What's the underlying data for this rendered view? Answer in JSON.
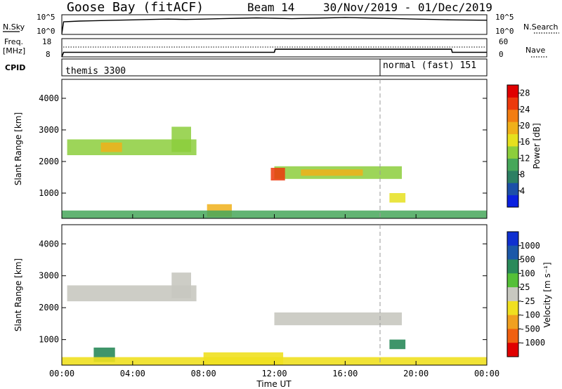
{
  "header": {
    "station": "Goose Bay (fitACF)",
    "beam": "Beam 14",
    "date_range": "30/Nov/2019 - 01/Dec/2019"
  },
  "noise_panel": {
    "left_label": "N.Sky",
    "right_label": "N.Search",
    "left_ticks": [
      "10^5",
      "10^0"
    ],
    "right_ticks": [
      "10^5",
      "10^0"
    ]
  },
  "freq_panel": {
    "left_label_line1": "Freq.",
    "left_label_line2": "[MHz]",
    "right_label": "Nave",
    "left_ticks": [
      "18",
      "8"
    ],
    "right_ticks": [
      "60",
      "0"
    ]
  },
  "cpid_panel": {
    "label": "CPID",
    "segments": [
      {
        "label": "themis 3300",
        "start_hour": 0
      },
      {
        "label": "normal (fast) 151",
        "start_hour": 18
      }
    ]
  },
  "colorbars": {
    "power": {
      "label": "Power [dB]",
      "ticks": [
        "4",
        "8",
        "12",
        "16",
        "20",
        "24",
        "28"
      ],
      "colors": [
        "#0a20e0",
        "#1c4fa8",
        "#2c7f63",
        "#46a75a",
        "#8cce3c",
        "#e6e01e",
        "#f0b01a",
        "#f27d12",
        "#ec3a0c",
        "#e00000"
      ]
    },
    "velocity": {
      "label": "Velocity [m s⁻¹]",
      "ticks": [
        "1000",
        "500",
        "100",
        "25",
        "-25",
        "-100",
        "-500",
        "-1000"
      ],
      "colors": [
        "#1030d0",
        "#1c58a8",
        "#2a8a5a",
        "#55c038",
        "#c8c8c0",
        "#f0e020",
        "#f0a020",
        "#f06010",
        "#e00000"
      ]
    }
  },
  "chart_data": [
    {
      "type": "line",
      "panel": "noise",
      "series": [
        {
          "values": [
            0.2,
            3.2,
            3.4,
            3.5,
            3.6,
            3.7,
            3.8,
            3.9,
            3.8,
            3.9,
            4.0,
            4.1,
            4.2,
            4.1,
            4.0,
            4.1,
            4.2,
            4.3,
            4.2,
            4.1,
            4.0,
            3.9,
            3.8,
            3.7,
            3.6
          ]
        }
      ],
      "x_hours": [
        0,
        0.1,
        1,
        2,
        3,
        4,
        5,
        6,
        7,
        8,
        9,
        10,
        11,
        12,
        13,
        14,
        15,
        16,
        17,
        18,
        19,
        20,
        21,
        22,
        24
      ],
      "ylim": [
        0,
        5
      ]
    },
    {
      "type": "line",
      "panel": "frequency",
      "series": [
        {
          "x_hours": [
            0,
            0.1,
            12,
            12.05,
            22,
            22.05,
            24
          ],
          "values": [
            8,
            10.5,
            10.5,
            12.2,
            12.2,
            10.5,
            10.5
          ]
        }
      ],
      "ylim": [
        8,
        18
      ]
    },
    {
      "type": "heatmap",
      "panel": "power",
      "ylabel": "Slant Range [km]",
      "xlabel": "Time UT",
      "x_ticks": [
        "00:00",
        "04:00",
        "08:00",
        "12:00",
        "16:00",
        "20:00",
        "00:00"
      ],
      "x_tick_hours": [
        0,
        4,
        8,
        12,
        16,
        20,
        24
      ],
      "y_ticks": [
        1000,
        2000,
        3000,
        4000
      ],
      "xlim_hours": [
        0,
        24
      ],
      "ylim": [
        200,
        4600
      ],
      "regions": [
        {
          "t0": 0.3,
          "t1": 7.6,
          "r0": 2200,
          "r1": 2700,
          "value": 14
        },
        {
          "t0": 2.2,
          "t1": 3.4,
          "r0": 2300,
          "r1": 2600,
          "value": 20
        },
        {
          "t0": 6.2,
          "t1": 7.3,
          "r0": 2300,
          "r1": 3100,
          "value": 14
        },
        {
          "t0": 12.0,
          "t1": 19.2,
          "r0": 1450,
          "r1": 1850,
          "value": 14
        },
        {
          "t0": 13.5,
          "t1": 17.0,
          "r0": 1550,
          "r1": 1750,
          "value": 20
        },
        {
          "t0": 11.8,
          "t1": 12.6,
          "r0": 1400,
          "r1": 1800,
          "value": 24
        },
        {
          "t0": 18.5,
          "t1": 19.4,
          "r0": 700,
          "r1": 1000,
          "value": 16
        },
        {
          "t0": 8.2,
          "t1": 9.6,
          "r0": 250,
          "r1": 650,
          "value": 20
        },
        {
          "t0": 0.0,
          "t1": 24.0,
          "r0": 200,
          "r1": 450,
          "value": 10
        }
      ]
    },
    {
      "type": "heatmap",
      "panel": "velocity",
      "ylabel": "Slant Range [km]",
      "xlabel": "Time UT",
      "x_ticks": [
        "00:00",
        "04:00",
        "08:00",
        "12:00",
        "16:00",
        "20:00",
        "00:00"
      ],
      "x_tick_hours": [
        0,
        4,
        8,
        12,
        16,
        20,
        24
      ],
      "y_ticks": [
        1000,
        2000,
        3000,
        4000
      ],
      "xlim_hours": [
        0,
        24
      ],
      "ylim": [
        200,
        4600
      ],
      "regions": [
        {
          "t0": 0.3,
          "t1": 7.6,
          "r0": 2200,
          "r1": 2700,
          "value": 0
        },
        {
          "t0": 6.2,
          "t1": 7.3,
          "r0": 2300,
          "r1": 3100,
          "value": 0
        },
        {
          "t0": 12.0,
          "t1": 19.2,
          "r0": 1450,
          "r1": 1850,
          "value": 0
        },
        {
          "t0": 18.5,
          "t1": 19.4,
          "r0": 700,
          "r1": 1000,
          "value": 60
        },
        {
          "t0": 1.8,
          "t1": 3.0,
          "r0": 300,
          "r1": 750,
          "value": 60
        },
        {
          "t0": 8.0,
          "t1": 12.5,
          "r0": 200,
          "r1": 600,
          "value": -60
        },
        {
          "t0": 0.0,
          "t1": 24.0,
          "r0": 200,
          "r1": 450,
          "value": -40
        }
      ]
    }
  ]
}
